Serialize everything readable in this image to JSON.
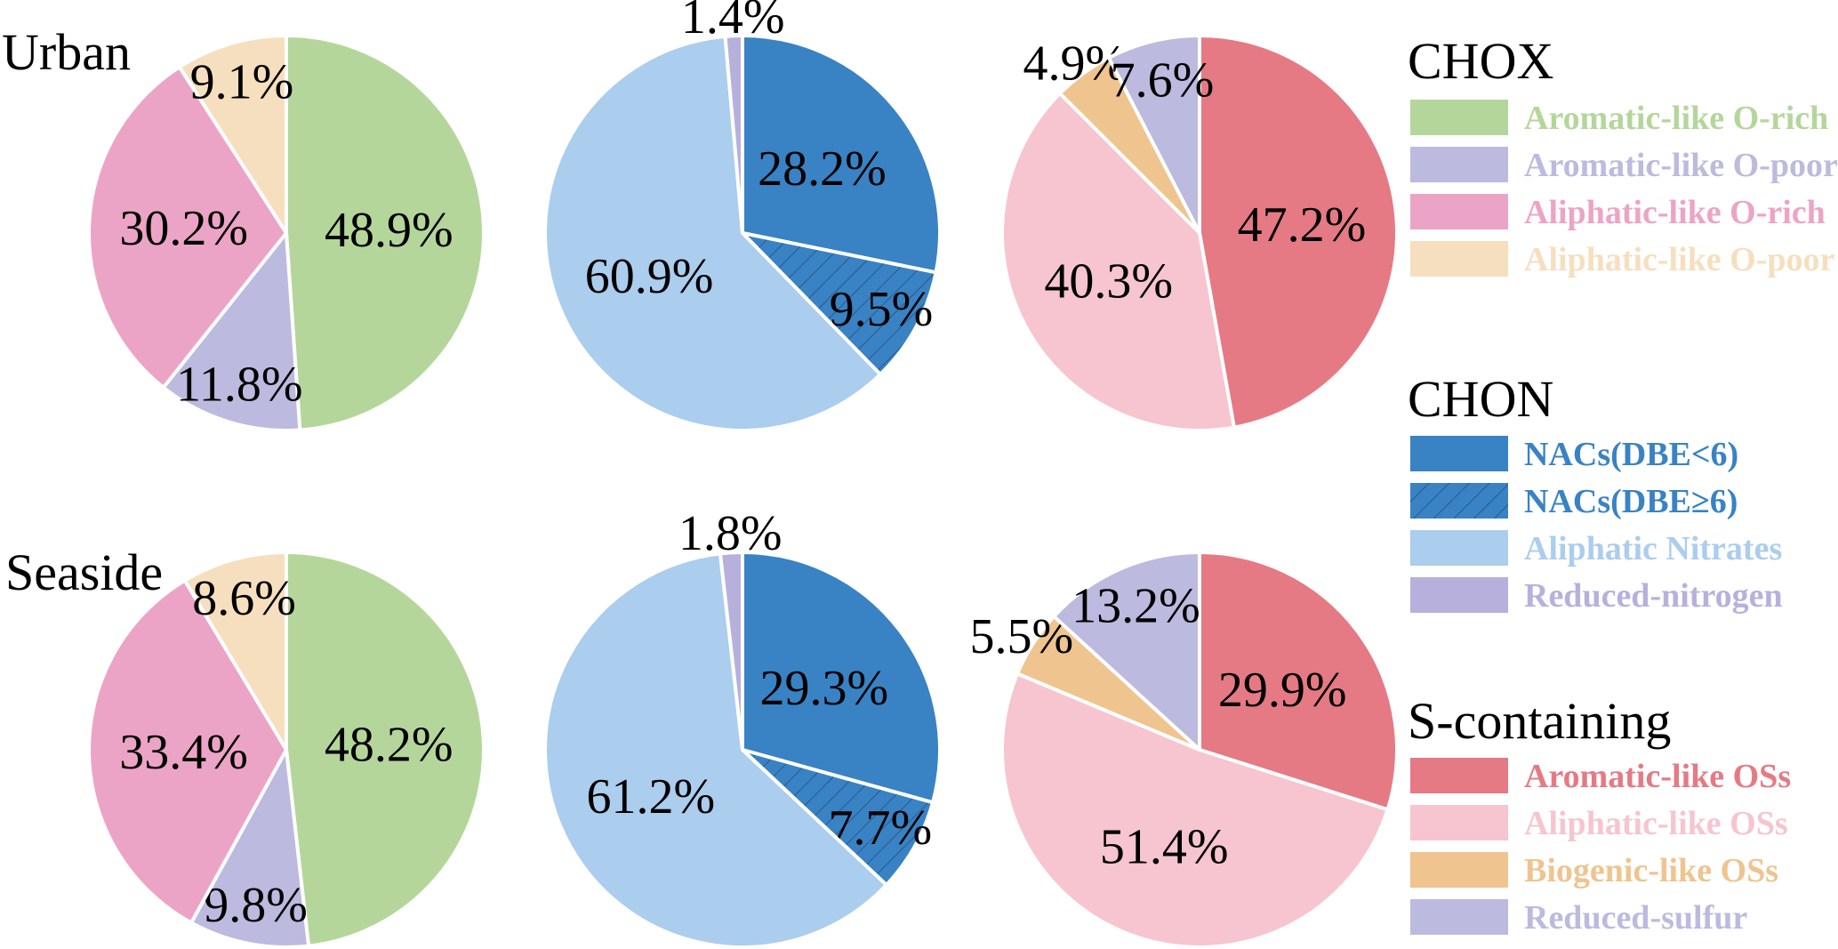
{
  "chart_data": {
    "type": "pie",
    "rows": [
      "Urban",
      "Seaside"
    ],
    "legend": [
      {
        "title": "CHOX",
        "items": [
          {
            "label": "Aromatic-like O-rich",
            "color": "#b5d69b"
          },
          {
            "label": "Aromatic-like O-poor",
            "color": "#bcbade"
          },
          {
            "label": "Aliphatic-like O-rich",
            "color": "#eca4c6"
          },
          {
            "label": "Aliphatic-like O-poor",
            "color": "#f6dfbe"
          }
        ]
      },
      {
        "title": "CHON",
        "items": [
          {
            "label": "NACs(DBE<6)",
            "color": "#3982c4"
          },
          {
            "label": "NACs(DBE≥6)",
            "color": "#3982c4",
            "hatched": true
          },
          {
            "label": "Aliphatic Nitrates",
            "color": "#abcdee"
          },
          {
            "label": "Reduced-nitrogen",
            "color": "#b8b0dc"
          }
        ]
      },
      {
        "title": "S-containing",
        "items": [
          {
            "label": "Aromatic-like OSs",
            "color": "#e57a84"
          },
          {
            "label": "Aliphatic-like OSs",
            "color": "#f6c5d0"
          },
          {
            "label": "Biogenic-like OSs",
            "color": "#efc48f"
          },
          {
            "label": "Reduced-sulfur",
            "color": "#bcbade"
          }
        ]
      }
    ],
    "pies": [
      {
        "row": "Urban",
        "group": "CHOX",
        "slices": [
          {
            "category": "Aromatic-like O-rich",
            "value": 48.9,
            "label": "48.9%"
          },
          {
            "category": "Aromatic-like O-poor",
            "value": 11.8,
            "label": "11.8%"
          },
          {
            "category": "Aliphatic-like O-rich",
            "value": 30.2,
            "label": "30.2%"
          },
          {
            "category": "Aliphatic-like O-poor",
            "value": 9.1,
            "label": "9.1%"
          }
        ]
      },
      {
        "row": "Urban",
        "group": "CHON",
        "slices": [
          {
            "category": "NACs(DBE<6)",
            "value": 28.2,
            "label": "28.2%"
          },
          {
            "category": "NACs(DBE≥6)",
            "value": 9.5,
            "label": "9.5%",
            "label_color": "#ffffff"
          },
          {
            "category": "Aliphatic Nitrates",
            "value": 60.9,
            "label": "60.9%"
          },
          {
            "category": "Reduced-nitrogen",
            "value": 1.4,
            "label": "1.4%"
          }
        ]
      },
      {
        "row": "Urban",
        "group": "S-containing",
        "slices": [
          {
            "category": "Aromatic-like OSs",
            "value": 47.2,
            "label": "47.2%"
          },
          {
            "category": "Aliphatic-like OSs",
            "value": 40.3,
            "label": "40.3%"
          },
          {
            "category": "Biogenic-like OSs",
            "value": 4.9,
            "label": "4.9%"
          },
          {
            "category": "Reduced-sulfur",
            "value": 7.6,
            "label": "7.6%"
          }
        ]
      },
      {
        "row": "Seaside",
        "group": "CHOX",
        "slices": [
          {
            "category": "Aromatic-like O-rich",
            "value": 48.2,
            "label": "48.2%"
          },
          {
            "category": "Aromatic-like O-poor",
            "value": 9.8,
            "label": "9.8%"
          },
          {
            "category": "Aliphatic-like O-rich",
            "value": 33.4,
            "label": "33.4%"
          },
          {
            "category": "Aliphatic-like O-poor",
            "value": 8.6,
            "label": "8.6%"
          }
        ]
      },
      {
        "row": "Seaside",
        "group": "CHON",
        "slices": [
          {
            "category": "NACs(DBE<6)",
            "value": 29.3,
            "label": "29.3%"
          },
          {
            "category": "NACs(DBE≥6)",
            "value": 7.7,
            "label": "7.7%",
            "label_color": "#ffffff"
          },
          {
            "category": "Aliphatic Nitrates",
            "value": 61.2,
            "label": "61.2%"
          },
          {
            "category": "Reduced-nitrogen",
            "value": 1.8,
            "label": "1.8%"
          }
        ]
      },
      {
        "row": "Seaside",
        "group": "S-containing",
        "slices": [
          {
            "category": "Aromatic-like OSs",
            "value": 29.9,
            "label": "29.9%"
          },
          {
            "category": "Aliphatic-like OSs",
            "value": 51.4,
            "label": "51.4%"
          },
          {
            "category": "Biogenic-like OSs",
            "value": 5.5,
            "label": "5.5%"
          },
          {
            "category": "Reduced-sulfur",
            "value": 13.2,
            "label": "13.2%"
          }
        ]
      }
    ]
  }
}
